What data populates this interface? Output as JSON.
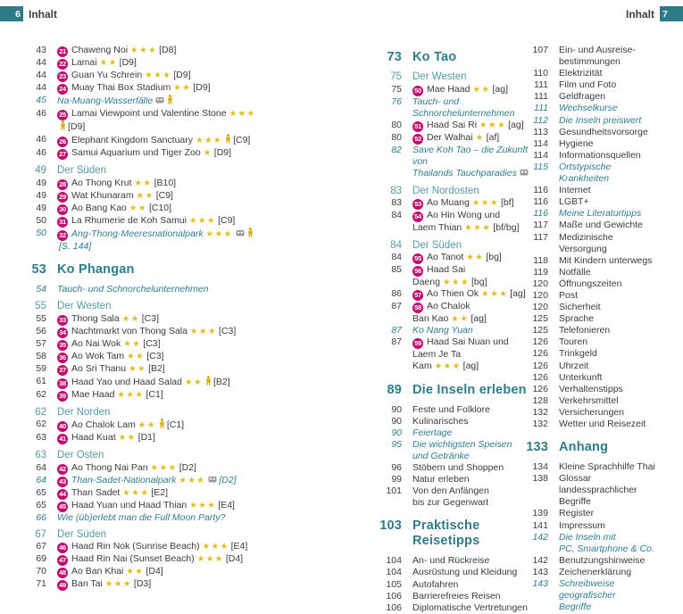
{
  "header_left": {
    "page_number": "6",
    "label": "Inhalt"
  },
  "header_right": {
    "page_number": "7",
    "label": "Inhalt"
  },
  "colors": {
    "teal_accent": "#2d7a88",
    "chapter_teal": "#2f7c8a",
    "section_teal": "#549aa7",
    "special_teal": "#2e7d93",
    "poi_badge_magenta": "#c20a6e",
    "star_gold": "#dfbe1a",
    "body_text": "#3b3b3b"
  },
  "legend": {
    "star_icon": "rating star",
    "family_icon": "family-friendly symbol",
    "excursion_icon": "excursion/tour symbol"
  },
  "columns": [
    {
      "rows": [
        {
          "type": "item",
          "page": "43",
          "marker": "21",
          "text": "Chaweng Noi",
          "stars": 3,
          "ref": "[D8]"
        },
        {
          "type": "item",
          "page": "44",
          "marker": "22",
          "text": "Lamai",
          "stars": 2,
          "ref": "[D9]"
        },
        {
          "type": "item",
          "page": "44",
          "marker": "23",
          "text": "Guan Yu Schrein",
          "stars": 3,
          "ref": "[D9]"
        },
        {
          "type": "item",
          "page": "44",
          "marker": "24",
          "text": "Muay Thai Box Stadium",
          "stars": 2,
          "ref": "[D9]"
        },
        {
          "type": "special",
          "page": "45",
          "text": "Na-Muang-Wasserfälle",
          "icons": [
            "bus",
            "person"
          ]
        },
        {
          "type": "item",
          "page": "46",
          "marker": "25",
          "text": "Lamai Viewpoint und Valentine Stone",
          "stars": 3,
          "icons": [
            "person"
          ],
          "ref": "[D9]"
        },
        {
          "type": "item",
          "page": "46",
          "marker": "26",
          "text": "Elephant Kingdom Sanctuary",
          "stars": 3,
          "icons": [
            "person"
          ],
          "ref": "[C9]"
        },
        {
          "type": "item",
          "page": "46",
          "marker": "27",
          "text": "Samui Aquarium und Tiger Zoo",
          "stars": 1,
          "ref": "[D9]"
        },
        {
          "type": "gap"
        },
        {
          "type": "section",
          "page": "49",
          "text": "Der Süden"
        },
        {
          "type": "item",
          "page": "49",
          "marker": "28",
          "text": "Ao Thong Krut",
          "stars": 2,
          "ref": "[B10]"
        },
        {
          "type": "item",
          "page": "49",
          "marker": "29",
          "text": "Wat Khunaram",
          "stars": 2,
          "ref": "[C9]"
        },
        {
          "type": "item",
          "page": "49",
          "marker": "30",
          "text": "Ao Bang Kao",
          "stars": 2,
          "ref": "[C10]"
        },
        {
          "type": "item",
          "page": "50",
          "marker": "31",
          "text": "La Rhumerie de Koh Samui",
          "stars": 3,
          "ref": "[C9]"
        },
        {
          "type": "special",
          "page": "50",
          "marker": "32",
          "text": "Ang-Thong-Meeresnationalpark",
          "stars": 3,
          "icons": [
            "bus",
            "person"
          ],
          "ref": "[S. 144]"
        },
        {
          "type": "gap"
        },
        {
          "type": "chapter",
          "page": "53",
          "text": "Ko Phangan"
        },
        {
          "type": "special",
          "page": "54",
          "text": "Tauch- und Schnorchelunternehmen"
        },
        {
          "type": "gap"
        },
        {
          "type": "section",
          "page": "55",
          "text": "Der Westen"
        },
        {
          "type": "item",
          "page": "55",
          "marker": "33",
          "text": "Thong Sala",
          "stars": 2,
          "ref": "[C3]"
        },
        {
          "type": "item",
          "page": "56",
          "marker": "34",
          "text": "Nachtmarkt von Thong Sala",
          "stars": 3,
          "ref": "[C3]"
        },
        {
          "type": "item",
          "page": "57",
          "marker": "35",
          "text": "Ao Nai Wok",
          "stars": 2,
          "ref": "[C3]"
        },
        {
          "type": "item",
          "page": "58",
          "marker": "36",
          "text": "Ao Wok Tam",
          "stars": 2,
          "ref": "[C3]"
        },
        {
          "type": "item",
          "page": "59",
          "marker": "37",
          "text": "Ao Sri Thanu",
          "stars": 2,
          "ref": "[B2]"
        },
        {
          "type": "item",
          "page": "61",
          "marker": "38",
          "text": "Haad Yao und Haad Salad",
          "stars": 2,
          "icons": [
            "person"
          ],
          "ref": "[B2]"
        },
        {
          "type": "item",
          "page": "62",
          "marker": "39",
          "text": "Mae Haad",
          "stars": 3,
          "ref": "[C1]"
        },
        {
          "type": "gap"
        },
        {
          "type": "section",
          "page": "62",
          "text": "Der Norden"
        },
        {
          "type": "item",
          "page": "62",
          "marker": "40",
          "text": "Ao Chalok Lam",
          "stars": 2,
          "icons": [
            "person"
          ],
          "ref": "[C1]"
        },
        {
          "type": "item",
          "page": "63",
          "marker": "41",
          "text": "Haad Kuat",
          "stars": 2,
          "ref": "[D1]"
        },
        {
          "type": "gap"
        },
        {
          "type": "section",
          "page": "63",
          "text": "Der Osten"
        },
        {
          "type": "item",
          "page": "64",
          "marker": "42",
          "text": "Ao Thong Nai Pan",
          "stars": 3,
          "ref": "[D2]"
        },
        {
          "type": "special",
          "page": "64",
          "marker": "43",
          "text": "Than-Sadet-Nationalpark",
          "stars": 3,
          "icons": [
            "bus"
          ],
          "ref": "[D2]"
        },
        {
          "type": "item",
          "page": "65",
          "marker": "44",
          "text": "Than Sadet",
          "stars": 3,
          "ref": "[E2]"
        },
        {
          "type": "item",
          "page": "65",
          "marker": "45",
          "text": "Haad Yuan und Haad Thian",
          "stars": 3,
          "ref": "[E4]"
        },
        {
          "type": "special",
          "page": "66",
          "text": "Wie (üb)erlebt man die Full Moon Party?"
        },
        {
          "type": "gap"
        },
        {
          "type": "section",
          "page": "67",
          "text": "Der Süden"
        },
        {
          "type": "item",
          "page": "67",
          "marker": "46",
          "text": "Haad Rin Nok (Sunrise Beach)",
          "stars": 3,
          "ref": "[E4]"
        },
        {
          "type": "item",
          "page": "69",
          "marker": "47",
          "text": "Haad Rin Nai (Sunset Beach)",
          "stars": 3,
          "ref": "[D4]"
        },
        {
          "type": "item",
          "page": "70",
          "marker": "48",
          "text": "Ao Ban Khai",
          "stars": 2,
          "ref": "[D4]"
        },
        {
          "type": "item",
          "page": "71",
          "marker": "49",
          "text": "Ban Tai",
          "stars": 3,
          "ref": "[D3]"
        }
      ]
    },
    {
      "rows": [
        {
          "type": "chapter",
          "page": "73",
          "text": "Ko Tao"
        },
        {
          "type": "section",
          "page": "75",
          "text": "Der Westen"
        },
        {
          "type": "item",
          "page": "75",
          "marker": "50",
          "text": "Mae Haad",
          "stars": 2,
          "ref": "[ag]"
        },
        {
          "type": "special",
          "page": "76",
          "text": "Tauch- und\nSchnorchelunternehmen"
        },
        {
          "type": "item",
          "page": "80",
          "marker": "51",
          "text": "Haad Sai Ri",
          "stars": 3,
          "ref": "[ag]"
        },
        {
          "type": "item",
          "page": "80",
          "marker": "52",
          "text": "Der Walhai",
          "stars": 1,
          "ref": "[af]"
        },
        {
          "type": "special",
          "page": "82",
          "text": "Save Koh Tao – die Zukunft von\nThailands Tauchparadies",
          "icons": [
            "bus"
          ]
        },
        {
          "type": "gap"
        },
        {
          "type": "section",
          "page": "83",
          "text": "Der Nordosten"
        },
        {
          "type": "item",
          "page": "83",
          "marker": "53",
          "text": "Ao Muang",
          "stars": 3,
          "ref": "[bf]"
        },
        {
          "type": "item",
          "page": "84",
          "marker": "54",
          "text": "Ao Hin Wong und\nLaem Thian",
          "stars": 3,
          "ref": "[bf/bg]"
        },
        {
          "type": "gap"
        },
        {
          "type": "section",
          "page": "84",
          "text": "Der Süden"
        },
        {
          "type": "item",
          "page": "84",
          "marker": "55",
          "text": "Ao Tanot",
          "stars": 2,
          "ref": "[bg]"
        },
        {
          "type": "item",
          "page": "85",
          "marker": "56",
          "text": "Haad Sai Daeng",
          "stars": 3,
          "ref": "[bg]"
        },
        {
          "type": "item",
          "page": "86",
          "marker": "57",
          "text": "Ao Thien Ok",
          "stars": 3,
          "ref": "[ag]"
        },
        {
          "type": "item",
          "page": "87",
          "marker": "58",
          "text": "Ao Chalok\nBan Kao",
          "stars": 2,
          "ref": "[ag]"
        },
        {
          "type": "special",
          "page": "87",
          "text": "Ko Nang Yuan"
        },
        {
          "type": "item",
          "page": "87",
          "marker": "59",
          "text": "Haad Sai Nuan und\nLaem Je Ta Kam",
          "stars": 3,
          "ref": "[ag]"
        },
        {
          "type": "gap"
        },
        {
          "type": "chapter",
          "page": "89",
          "text": "Die Inseln erleben"
        },
        {
          "type": "plain",
          "page": "90",
          "text": "Feste und Folklore"
        },
        {
          "type": "plain",
          "page": "90",
          "text": "Kulinarisches"
        },
        {
          "type": "special",
          "page": "90",
          "text": "Feiertage"
        },
        {
          "type": "special",
          "page": "95",
          "text": "Die wichtigsten Speisen\nund Getränke"
        },
        {
          "type": "plain",
          "page": "96",
          "text": "Stöbern und Shoppen"
        },
        {
          "type": "plain",
          "page": "99",
          "text": "Natur erleben"
        },
        {
          "type": "plain",
          "page": "101",
          "text": "Von den Anfängen\nbis zur Gegenwart"
        },
        {
          "type": "gap"
        },
        {
          "type": "chapter",
          "page": "103",
          "text": "Praktische Reisetipps"
        },
        {
          "type": "plain",
          "page": "104",
          "text": "An- und Rückreise"
        },
        {
          "type": "plain",
          "page": "104",
          "text": "Ausrüstung und Kleidung"
        },
        {
          "type": "plain",
          "page": "105",
          "text": "Autofahren"
        },
        {
          "type": "plain",
          "page": "106",
          "text": "Barrierefreies Reisen"
        },
        {
          "type": "plain",
          "page": "106",
          "text": "Diplomatische Vertretungen"
        }
      ]
    },
    {
      "rows": [
        {
          "type": "plain",
          "page": "107",
          "text": "Ein- und Ausreise-\nbestimmungen"
        },
        {
          "type": "plain",
          "page": "110",
          "text": "Elektrizität"
        },
        {
          "type": "plain",
          "page": "111",
          "text": "Film und Foto"
        },
        {
          "type": "plain",
          "page": "111",
          "text": "Geldfragen"
        },
        {
          "type": "special",
          "page": "111",
          "text": "Wechselkurse"
        },
        {
          "type": "special",
          "page": "112",
          "text": "Die Inseln preiswert"
        },
        {
          "type": "plain",
          "page": "113",
          "text": "Gesundheitsvorsorge"
        },
        {
          "type": "plain",
          "page": "114",
          "text": "Hygiene"
        },
        {
          "type": "plain",
          "page": "114",
          "text": "Informationsquellen"
        },
        {
          "type": "special",
          "page": "115",
          "text": "Ortstypische Krankheiten"
        },
        {
          "type": "plain",
          "page": "116",
          "text": "Internet"
        },
        {
          "type": "plain",
          "page": "116",
          "text": "LGBT+"
        },
        {
          "type": "special",
          "page": "116",
          "text": "Meine Literaturtipps"
        },
        {
          "type": "plain",
          "page": "117",
          "text": "Maße und Gewichte"
        },
        {
          "type": "plain",
          "page": "117",
          "text": "Medizinische Versorgung"
        },
        {
          "type": "plain",
          "page": "118",
          "text": "Mit Kindern unterwegs"
        },
        {
          "type": "plain",
          "page": "119",
          "text": "Notfälle"
        },
        {
          "type": "plain",
          "page": "120",
          "text": "Öffnungszeiten"
        },
        {
          "type": "plain",
          "page": "120",
          "text": "Post"
        },
        {
          "type": "plain",
          "page": "120",
          "text": "Sicherheit"
        },
        {
          "type": "plain",
          "page": "125",
          "text": "Sprache"
        },
        {
          "type": "plain",
          "page": "125",
          "text": "Telefonieren"
        },
        {
          "type": "plain",
          "page": "126",
          "text": "Touren"
        },
        {
          "type": "plain",
          "page": "126",
          "text": "Trinkgeld"
        },
        {
          "type": "plain",
          "page": "126",
          "text": "Uhrzeit"
        },
        {
          "type": "plain",
          "page": "126",
          "text": "Unterkunft"
        },
        {
          "type": "plain",
          "page": "126",
          "text": "Verhaltenstipps"
        },
        {
          "type": "plain",
          "page": "128",
          "text": "Verkehrsmittel"
        },
        {
          "type": "plain",
          "page": "132",
          "text": "Versicherungen"
        },
        {
          "type": "plain",
          "page": "132",
          "text": "Wetter und Reisezeit"
        },
        {
          "type": "gap"
        },
        {
          "type": "chapter",
          "page": "133",
          "text": "Anhang"
        },
        {
          "type": "plain",
          "page": "134",
          "text": "Kleine Sprachhilfe Thai"
        },
        {
          "type": "plain",
          "page": "138",
          "text": "Glossar landessprachlicher\nBegriffe"
        },
        {
          "type": "plain",
          "page": "139",
          "text": "Register"
        },
        {
          "type": "plain",
          "page": "141",
          "text": "Impressum"
        },
        {
          "type": "special",
          "page": "142",
          "text": "Die Inseln mit\nPC, Smartphone & Co."
        },
        {
          "type": "plain",
          "page": "142",
          "text": "Benutzungshinweise"
        },
        {
          "type": "plain",
          "page": "143",
          "text": "Zeichenerklärung"
        },
        {
          "type": "special",
          "page": "143",
          "text": "Schreibweise geografischer\nBegriffe"
        }
      ]
    }
  ]
}
